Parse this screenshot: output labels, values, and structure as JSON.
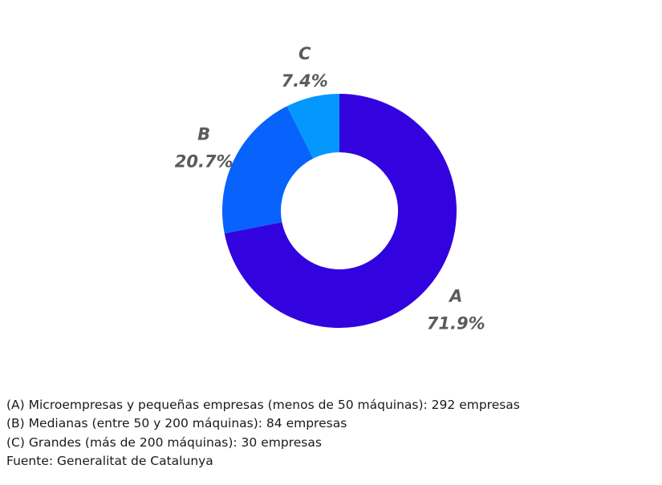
{
  "chart_data": {
    "type": "pie",
    "donut": true,
    "title": "",
    "slices": [
      {
        "label": "A",
        "value": 71.9,
        "value_label": "71.9%",
        "color": "#3203df"
      },
      {
        "label": "B",
        "value": 20.7,
        "value_label": "20.7%",
        "color": "#0763fb"
      },
      {
        "label": "C",
        "value": 7.4,
        "value_label": "7.4%",
        "color": "#0497fe"
      }
    ],
    "label_color": "#5b5b5b",
    "legend": "none"
  },
  "notes": [
    "(A) Microempresas y pequeñas empresas (menos de 50 máquinas): 292 empresas",
    "(B) Medianas (entre 50 y 200 máquinas): 84 empresas",
    "(C) Grandes (más de 200 máquinas): 30 empresas",
    "Fuente: Generalitat de Catalunya"
  ]
}
